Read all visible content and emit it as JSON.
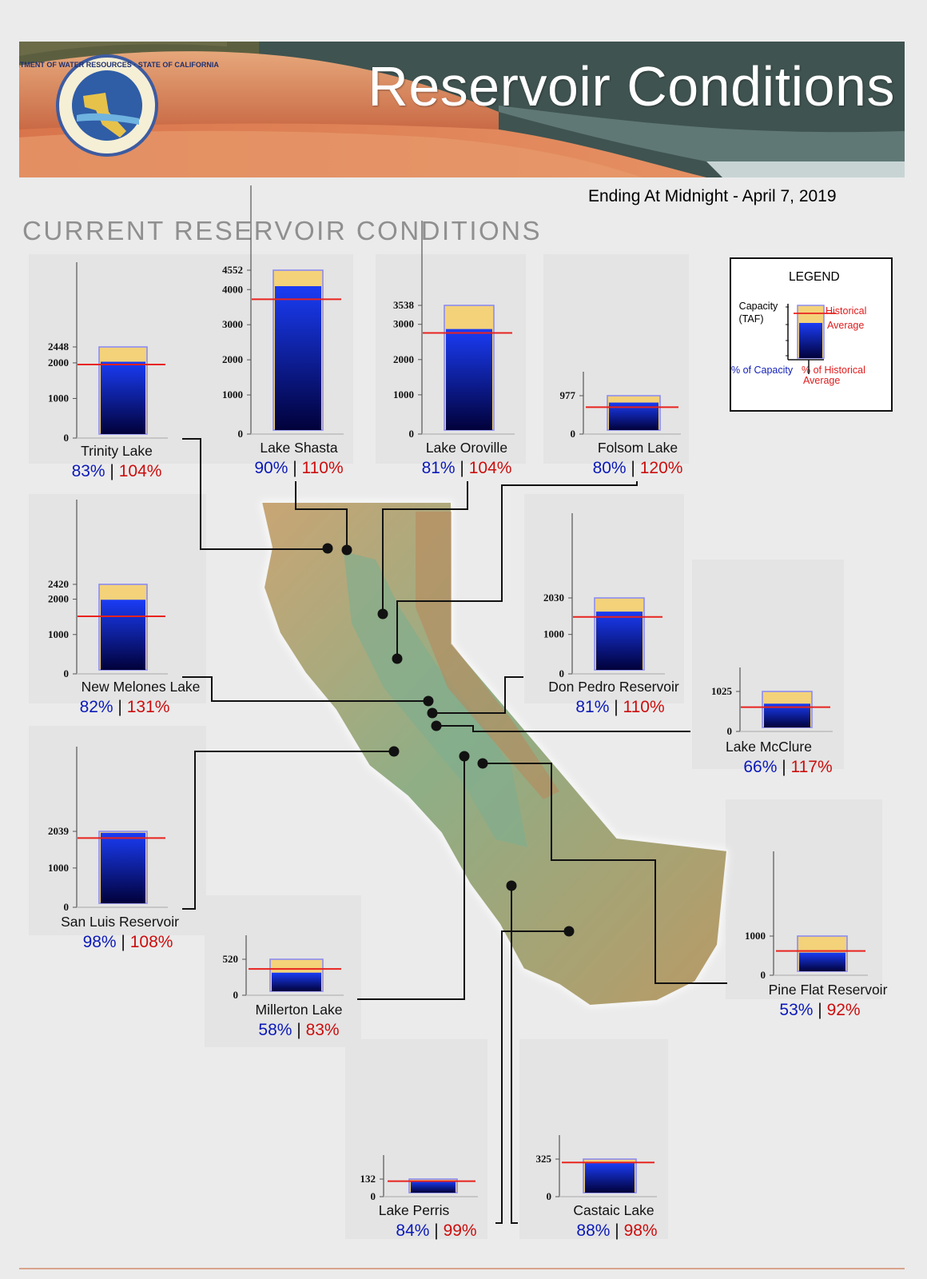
{
  "banner": {
    "title": "Reservoir Conditions",
    "seal_text": "DEPARTMENT OF WATER RESOURCES · STATE OF CALIFORNIA"
  },
  "date_line": "Ending At Midnight - April 7, 2019",
  "section_title": "CURRENT RESERVOIR CONDITIONS",
  "legend": {
    "title": "LEGEND",
    "capacity_label": "Capacity",
    "capacity_unit": "(TAF)",
    "historical_line1": "Historical",
    "historical_line2": "Average",
    "pct_capacity": "% of Capacity",
    "pct_historical_line1": "% of Historical",
    "pct_historical_line2": "Average"
  },
  "colors": {
    "capacity_fill": "#f3d27a",
    "capacity_outline": "#8c8cf0",
    "storage_top": "#1a3cf5",
    "storage_bottom": "#01013a",
    "historical_line": "#e8231f",
    "pct_capacity_text": "#0b19b8",
    "pct_historical_text": "#cc0d0d"
  },
  "chart_data": {
    "type": "bar",
    "unit": "TAF",
    "reservoirs": [
      {
        "name": "Trinity Lake",
        "capacity": 2448,
        "storage": 2032,
        "historical_avg": 1954,
        "pct_capacity": "83%",
        "pct_historical": "104%",
        "ticks": [
          "0",
          "1000",
          "2000",
          "2448"
        ],
        "tick_values": [
          0,
          1000,
          2000,
          2448
        ]
      },
      {
        "name": "Lake Shasta",
        "capacity": 4552,
        "storage": 4097,
        "historical_avg": 3724,
        "pct_capacity": "90%",
        "pct_historical": "110%",
        "ticks": [
          "0",
          "1000",
          "2000",
          "3000",
          "4000",
          "4552"
        ],
        "tick_values": [
          0,
          1000,
          2000,
          3000,
          4000,
          4552
        ]
      },
      {
        "name": "Lake Oroville",
        "capacity": 3538,
        "storage": 2866,
        "historical_avg": 2755,
        "pct_capacity": "81%",
        "pct_historical": "104%",
        "ticks": [
          "0",
          "1000",
          "2000",
          "3000",
          "3538"
        ],
        "tick_values": [
          0,
          1000,
          2000,
          3000,
          3538
        ]
      },
      {
        "name": "Folsom Lake",
        "capacity": 977,
        "storage": 782,
        "historical_avg": 651,
        "pct_capacity": "80%",
        "pct_historical": "120%",
        "ticks": [
          "0",
          "977"
        ],
        "tick_values": [
          0,
          977
        ]
      },
      {
        "name": "New Melones Lake",
        "capacity": 2420,
        "storage": 1984,
        "historical_avg": 1515,
        "pct_capacity": "82%",
        "pct_historical": "131%",
        "ticks": [
          "0",
          "1000",
          "2000",
          "2420"
        ],
        "tick_values": [
          0,
          1000,
          2000,
          2420
        ]
      },
      {
        "name": "Don Pedro Reservoir",
        "capacity": 2030,
        "storage": 1644,
        "historical_avg": 1495,
        "pct_capacity": "81%",
        "pct_historical": "110%",
        "ticks": [
          "0",
          "1000",
          "2030"
        ],
        "tick_values": [
          0,
          1000,
          2030
        ]
      },
      {
        "name": "Lake McClure",
        "capacity": 1025,
        "storage": 677,
        "historical_avg": 578,
        "pct_capacity": "66%",
        "pct_historical": "117%",
        "ticks": [
          "0",
          "1025"
        ],
        "tick_values": [
          0,
          1025
        ]
      },
      {
        "name": "San Luis Reservoir",
        "capacity": 2039,
        "storage": 1998,
        "historical_avg": 1850,
        "pct_capacity": "98%",
        "pct_historical": "108%",
        "ticks": [
          "0",
          "1000",
          "2039"
        ],
        "tick_values": [
          0,
          1000,
          2039
        ]
      },
      {
        "name": "Millerton Lake",
        "capacity": 520,
        "storage": 302,
        "historical_avg": 363,
        "pct_capacity": "58%",
        "pct_historical": "83%",
        "ticks": [
          "0",
          "520"
        ],
        "tick_values": [
          0,
          520
        ]
      },
      {
        "name": "Pine Flat Reservoir",
        "capacity": 1000,
        "storage": 530,
        "historical_avg": 576,
        "pct_capacity": "53%",
        "pct_historical": "92%",
        "ticks": [
          "0",
          "1000"
        ],
        "tick_values": [
          0,
          1000
        ]
      },
      {
        "name": "Lake Perris",
        "capacity": 132,
        "storage": 111,
        "historical_avg": 112,
        "pct_capacity": "84%",
        "pct_historical": "99%",
        "ticks": [
          "0",
          "132"
        ],
        "tick_values": [
          0,
          132
        ]
      },
      {
        "name": "Castaic Lake",
        "capacity": 325,
        "storage": 286,
        "historical_avg": 292,
        "pct_capacity": "88%",
        "pct_historical": "98%",
        "ticks": [
          "0",
          "325"
        ],
        "tick_values": [
          0,
          325
        ]
      }
    ]
  }
}
